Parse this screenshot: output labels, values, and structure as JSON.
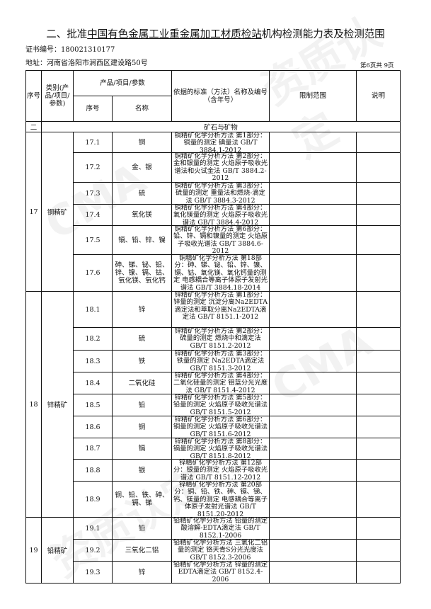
{
  "title_prefix": "二、批准",
  "title_org": "中国有色金属工业重金属加工材质检站",
  "title_suffix": "机构检测能力表及检测范围",
  "cert_label": "证书编号：",
  "cert_no": "180021310177",
  "address": "地址：河南省洛阳市涧西区建设路50号",
  "page_info": "第6页共  9页",
  "watermark": "资质认定 CMA",
  "headers": {
    "seq": "序号",
    "category": "类别(产品/项目/参数)",
    "product": "产品/项目/参数",
    "sub_seq": "序号",
    "name": "名称",
    "standard": "依据的标准（方法）名称及编号（含年号）",
    "limit": "限制范围",
    "note": "说明"
  },
  "section": {
    "no": "二",
    "name": "矿石与矿物"
  },
  "groups": [
    {
      "no": "17",
      "category": "铜精矿",
      "items": [
        {
          "seq": "17.1",
          "name": "铜",
          "standard": "铜精矿化学分析方法 第1部分：铜量的测定 碘量法 GB/T 3884.1-2012"
        },
        {
          "seq": "17.2",
          "name": "金、银",
          "standard": "铜精矿化学分析方法 第2部分：金和银量的测定 火焰原子吸收光谱法和火试金法 GB/T 3884.2-2012"
        },
        {
          "seq": "17.3",
          "name": "硫",
          "standard": "铜精矿化学分析方法 第3部分：硫量的测定 重量法和燃烧-滴定法 GB/T 3884.3-2012"
        },
        {
          "seq": "17.4",
          "name": "氧化镁",
          "standard": "铜精矿化学分析方法 第4部分：氧化镁量的测定 火焰原子吸收光谱法 GB/T 3884.4-2012"
        },
        {
          "seq": "17.5",
          "name": "镉、铅、锌、镍",
          "standard": "铜精矿化学分析方法 第6部分：铅、锌、镉和镍量的测定 火焰原子吸收光谱法 GB/T 3884.6-2012"
        },
        {
          "seq": "17.6",
          "name": "砷、锑、铋、铅、锌、镍、镉、钴、氧化镁、氧化钙",
          "standard": "铜精矿化学分析方法 第18部分：砷、锑、铋、铅、锌、镍、镉、钴、氧化镁、氧化钙量的测定 电感耦合等离子体原子发射光谱法 GB/T 3884.18-2014"
        }
      ]
    },
    {
      "no": "18",
      "category": "锌精矿",
      "items": [
        {
          "seq": "18.1",
          "name": "锌",
          "standard": "锌精矿化学分析方法 第1部分：锌量的测定 沉淀分离Na2EDTA滴定法和萃取分离Na2EDTA滴定法 GB/T 8151.1-2012"
        },
        {
          "seq": "18.2",
          "name": "硫",
          "standard": "锌精矿化学分析方法 第2部分：硫量的测定 燃烧中和滴定法 GB/T 8151.2-2012"
        },
        {
          "seq": "18.3",
          "name": "铁",
          "standard": "锌精矿化学分析方法 第3部分：铁量的测定 Na2EDTA滴定法 GB/T 8151.3-2012"
        },
        {
          "seq": "18.4",
          "name": "二氧化硅",
          "standard": "锌精矿化学分析方法 第4部分：二氧化硅量的测定 钼蓝分光光度法 GB/T 8151.4-2012"
        },
        {
          "seq": "18.5",
          "name": "铅",
          "standard": "锌精矿化学分析方法 第5部分：铅量的测定 火焰原子吸收光谱法 GB/T 8151.5-2012"
        },
        {
          "seq": "18.6",
          "name": "铜",
          "standard": "锌精矿化学分析方法 第6部分：铜量的测定 火焰原子吸收光谱法 GB/T 8151.6-2012"
        },
        {
          "seq": "18.7",
          "name": "镉",
          "standard": "锌精矿化学分析方法 第8部分：镉量的测定 火焰原子吸收光谱法 GB/T 8151.8-2012"
        },
        {
          "seq": "18.8",
          "name": "银",
          "standard": "锌精矿化学分析方法 第12部分：银量的测定 火焰原子吸收光谱法 GB/T 8151.12-2012"
        },
        {
          "seq": "18.9",
          "name": "铜、铅、铁、砷、镉、锑",
          "standard": "锌精矿化学分析方法 第20部分：铜、铅、铁、砷、镉、锑、钙、镁量的测定 电感耦合等离子体原子发射光谱法 GB/T 8151.20-2012"
        }
      ]
    },
    {
      "no": "19",
      "category": "铅精矿",
      "items": [
        {
          "seq": "19.1",
          "name": "铅",
          "standard": "铅精矿化学分析方法 铅量的测定酸溶解-EDTA滴定法 GB/T 8152.1-2006"
        },
        {
          "seq": "19.2",
          "name": "三氧化二铝",
          "standard": "铅精矿化学分析方法 三氧化二铝量的测定 铬天青S分光光度法 GB/T 8152.3-2006"
        },
        {
          "seq": "19.3",
          "name": "锌",
          "standard": "铅精矿化学分析方法 锌量的测定 EDTA滴定法 GB/T 8152.4-2006"
        }
      ]
    }
  ]
}
